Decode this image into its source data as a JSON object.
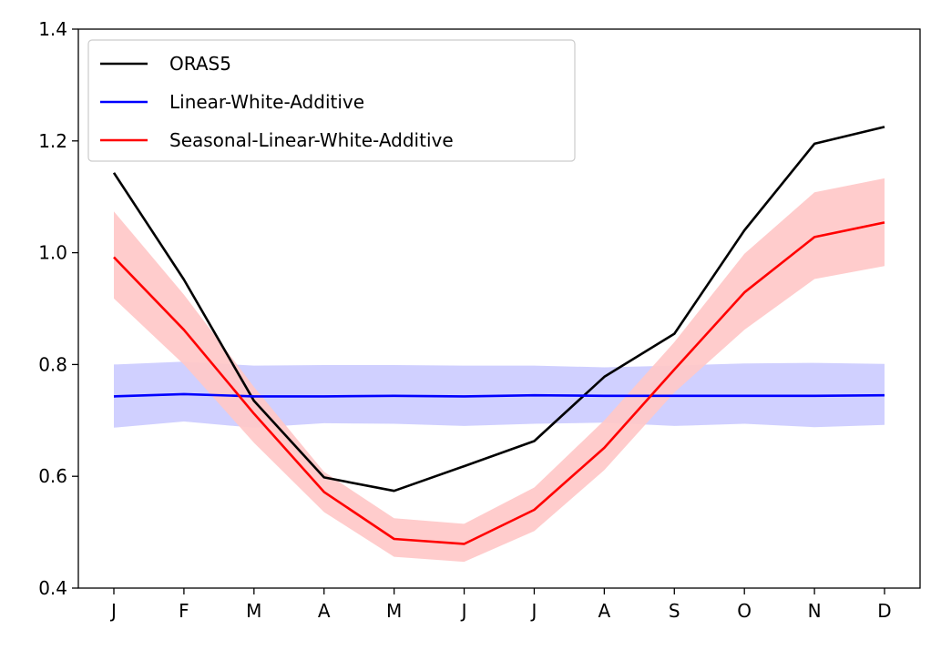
{
  "chart_data": {
    "type": "line",
    "categories": [
      "J",
      "F",
      "M",
      "A",
      "M",
      "J",
      "J",
      "A",
      "S",
      "O",
      "N",
      "D"
    ],
    "ylim": [
      0.4,
      1.4
    ],
    "yticks": [
      0.4,
      0.6,
      0.8,
      1.0,
      1.2,
      1.4
    ],
    "ytick_labels": [
      "0.4",
      "0.6",
      "0.8",
      "1.0",
      "1.2",
      "1.4"
    ],
    "grid": false,
    "legend_position": "top-left",
    "series": [
      {
        "name": "ORAS5",
        "color": "#000000",
        "values": [
          1.143,
          0.952,
          0.735,
          0.598,
          0.574,
          0.618,
          0.663,
          0.778,
          0.855,
          1.04,
          1.195,
          1.225
        ]
      },
      {
        "name": "Linear-White-Additive",
        "color": "#0000ff",
        "band_color": "#ccccff",
        "values": [
          0.743,
          0.747,
          0.743,
          0.743,
          0.744,
          0.743,
          0.745,
          0.744,
          0.744,
          0.744,
          0.744,
          0.745
        ],
        "lower": [
          0.687,
          0.698,
          0.687,
          0.695,
          0.694,
          0.69,
          0.694,
          0.696,
          0.69,
          0.694,
          0.688,
          0.692
        ],
        "upper": [
          0.8,
          0.805,
          0.798,
          0.799,
          0.799,
          0.798,
          0.798,
          0.795,
          0.798,
          0.802,
          0.803,
          0.801
        ]
      },
      {
        "name": "Seasonal-Linear-White-Additive",
        "color": "#ff0000",
        "band_color": "#ffc8c8",
        "values": [
          0.992,
          0.862,
          0.712,
          0.572,
          0.488,
          0.479,
          0.54,
          0.651,
          0.791,
          0.929,
          1.028,
          1.054
        ],
        "lower": [
          0.918,
          0.8,
          0.66,
          0.536,
          0.456,
          0.447,
          0.502,
          0.611,
          0.75,
          0.862,
          0.953,
          0.976
        ],
        "upper": [
          1.074,
          0.925,
          0.76,
          0.608,
          0.525,
          0.515,
          0.58,
          0.7,
          0.84,
          0.998,
          1.108,
          1.133
        ]
      }
    ]
  }
}
